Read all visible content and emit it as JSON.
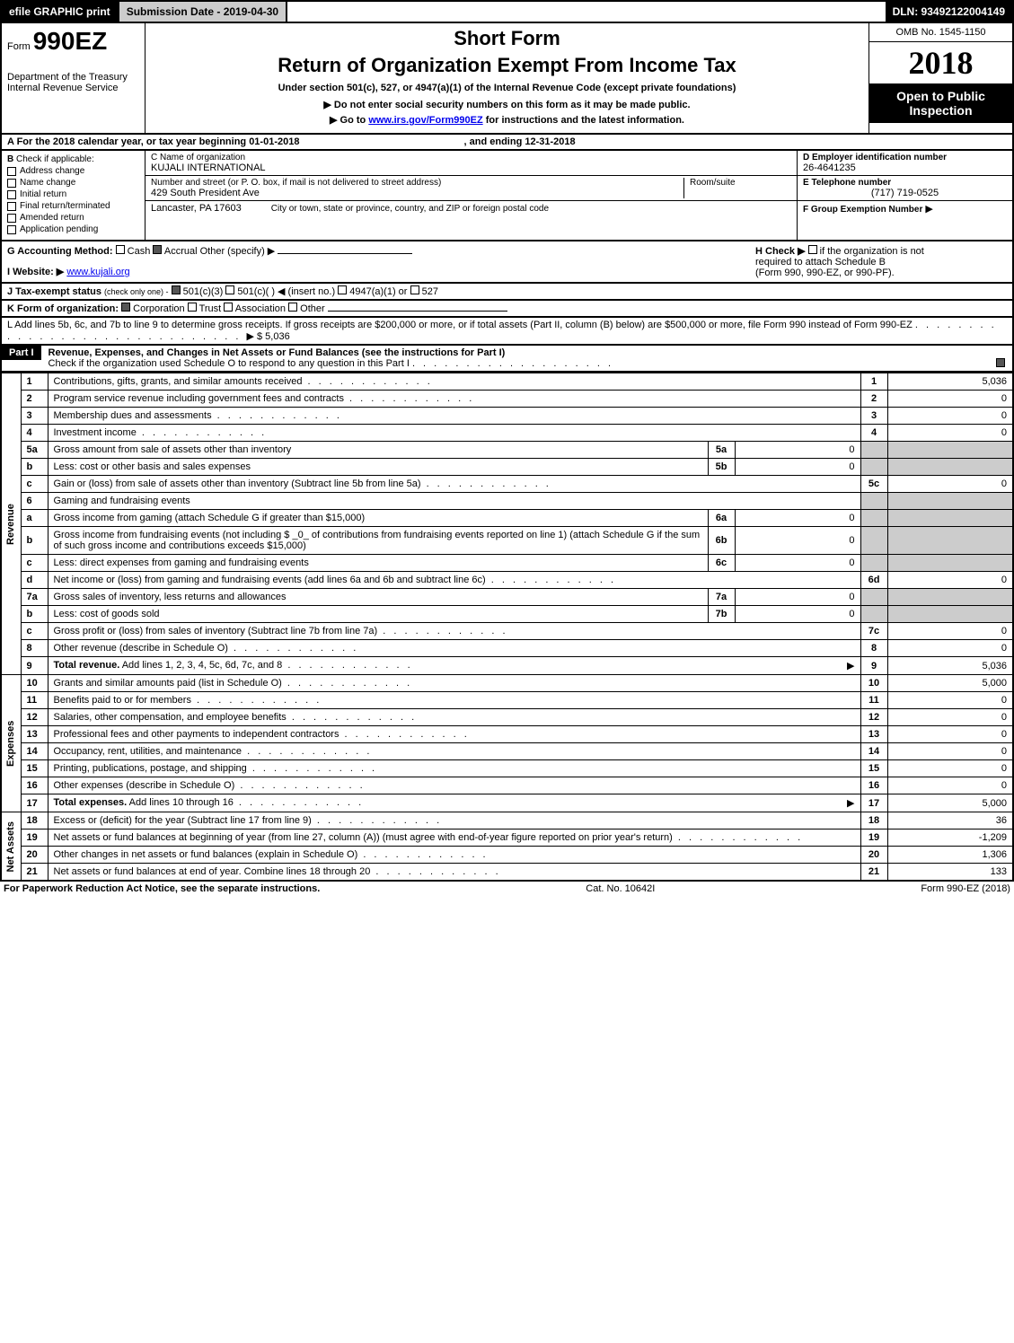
{
  "top": {
    "efile": "efile GRAPHIC print",
    "submission": "Submission Date - 2019-04-30",
    "dln": "DLN: 93492122004149"
  },
  "header": {
    "form_prefix": "Form",
    "form_number": "990EZ",
    "dept1": "Department of the Treasury",
    "dept2": "Internal Revenue Service",
    "short_form": "Short Form",
    "return_title": "Return of Organization Exempt From Income Tax",
    "subtitle": "Under section 501(c), 527, or 4947(a)(1) of the Internal Revenue Code (except private foundations)",
    "inst1_prefix": "▶ Do not enter social security numbers on this form as it may be made public.",
    "inst2_prefix": "▶ Go to ",
    "inst2_link": "www.irs.gov/Form990EZ",
    "inst2_suffix": " for instructions and the latest information.",
    "omb": "OMB No. 1545-1150",
    "year": "2018",
    "open_public1": "Open to Public",
    "open_public2": "Inspection"
  },
  "sectionA": {
    "label": "A For the 2018 calendar year, or tax year beginning 01-01-2018",
    "ending": ", and ending 12-31-2018"
  },
  "sectionB": {
    "label": "B",
    "check_if": "Check if applicable:",
    "addr_change": "Address change",
    "name_change": "Name change",
    "initial_return": "Initial return",
    "final_return": "Final return/terminated",
    "amended": "Amended return",
    "app_pending": "Application pending"
  },
  "sectionC": {
    "label": "C Name of organization",
    "org_name": "KUJALI INTERNATIONAL",
    "addr_label": "Number and street (or P. O. box, if mail is not delivered to street address)",
    "address": "429 South President Ave",
    "room_label": "Room/suite",
    "city_label": "City or town, state or province, country, and ZIP or foreign postal code",
    "city": "Lancaster, PA  17603"
  },
  "sectionD": {
    "label": "D Employer identification number",
    "ein": "26-4641235"
  },
  "sectionE": {
    "label": "E Telephone number",
    "phone": "(717) 719-0525"
  },
  "sectionF": {
    "label": "F Group Exemption Number",
    "arrow": "▶"
  },
  "sectionG": {
    "label": "G Accounting Method:",
    "cash": "Cash",
    "accrual": "Accrual",
    "other": "Other (specify) ▶"
  },
  "sectionH": {
    "label": "H   Check ▶",
    "text1": "if the organization is not",
    "text2": "required to attach Schedule B",
    "text3": "(Form 990, 990-EZ, or 990-PF)."
  },
  "sectionI": {
    "label": "I Website: ▶",
    "url": "www.kujali.org"
  },
  "sectionJ": {
    "label": "J Tax-exempt status",
    "note": "(check only one) -",
    "opt1": "501(c)(3)",
    "opt2": "501(c)(  ) ◀ (insert no.)",
    "opt3": "4947(a)(1) or",
    "opt4": "527"
  },
  "sectionK": {
    "label": "K Form of organization:",
    "corp": "Corporation",
    "trust": "Trust",
    "assoc": "Association",
    "other": "Other"
  },
  "sectionL": {
    "text": "L Add lines 5b, 6c, and 7b to line 9 to determine gross receipts. If gross receipts are $200,000 or more, or if total assets (Part II, column (B) below) are $500,000 or more, file Form 990 instead of Form 990-EZ",
    "amount": "▶ $ 5,036"
  },
  "part1": {
    "header": "Part I",
    "title": "Revenue, Expenses, and Changes in Net Assets or Fund Balances (see the instructions for Part I)",
    "check_text": "Check if the organization used Schedule O to respond to any question in this Part I"
  },
  "rows": [
    {
      "no": "1",
      "desc": "Contributions, gifts, grants, and similar amounts received",
      "rno": "1",
      "rval": "5,036"
    },
    {
      "no": "2",
      "desc": "Program service revenue including government fees and contracts",
      "rno": "2",
      "rval": "0"
    },
    {
      "no": "3",
      "desc": "Membership dues and assessments",
      "rno": "3",
      "rval": "0"
    },
    {
      "no": "4",
      "desc": "Investment income",
      "rno": "4",
      "rval": "0"
    },
    {
      "no": "5a",
      "desc": "Gross amount from sale of assets other than inventory",
      "mno": "5a",
      "mval": "0",
      "shaded": true
    },
    {
      "no": "b",
      "desc": "Less: cost or other basis and sales expenses",
      "mno": "5b",
      "mval": "0",
      "shaded": true
    },
    {
      "no": "c",
      "desc": "Gain or (loss) from sale of assets other than inventory (Subtract line 5b from line 5a)",
      "rno": "5c",
      "rval": "0"
    },
    {
      "no": "6",
      "desc": "Gaming and fundraising events",
      "shaded": true,
      "noborder": true
    },
    {
      "no": "a",
      "desc": "Gross income from gaming (attach Schedule G if greater than $15,000)",
      "mno": "6a",
      "mval": "0",
      "shaded": true
    },
    {
      "no": "b",
      "desc": "Gross income from fundraising events (not including $ _0_ of contributions from fundraising events reported on line 1) (attach Schedule G if the sum of such gross income and contributions exceeds $15,000)",
      "mno": "6b",
      "mval": "0",
      "shaded": true
    },
    {
      "no": "c",
      "desc": "Less: direct expenses from gaming and fundraising events",
      "mno": "6c",
      "mval": "0",
      "shaded": true
    },
    {
      "no": "d",
      "desc": "Net income or (loss) from gaming and fundraising events (add lines 6a and 6b and subtract line 6c)",
      "rno": "6d",
      "rval": "0"
    },
    {
      "no": "7a",
      "desc": "Gross sales of inventory, less returns and allowances",
      "mno": "7a",
      "mval": "0",
      "shaded": true
    },
    {
      "no": "b",
      "desc": "Less: cost of goods sold",
      "mno": "7b",
      "mval": "0",
      "shaded": true
    },
    {
      "no": "c",
      "desc": "Gross profit or (loss) from sales of inventory (Subtract line 7b from line 7a)",
      "rno": "7c",
      "rval": "0"
    },
    {
      "no": "8",
      "desc": "Other revenue (describe in Schedule O)",
      "rno": "8",
      "rval": "0"
    },
    {
      "no": "9",
      "desc": "Total revenue. Add lines 1, 2, 3, 4, 5c, 6d, 7c, and 8",
      "rno": "9",
      "rval": "5,036",
      "bold": true,
      "arrow": true
    }
  ],
  "expense_rows": [
    {
      "no": "10",
      "desc": "Grants and similar amounts paid (list in Schedule O)",
      "rno": "10",
      "rval": "5,000"
    },
    {
      "no": "11",
      "desc": "Benefits paid to or for members",
      "rno": "11",
      "rval": "0"
    },
    {
      "no": "12",
      "desc": "Salaries, other compensation, and employee benefits",
      "rno": "12",
      "rval": "0"
    },
    {
      "no": "13",
      "desc": "Professional fees and other payments to independent contractors",
      "rno": "13",
      "rval": "0"
    },
    {
      "no": "14",
      "desc": "Occupancy, rent, utilities, and maintenance",
      "rno": "14",
      "rval": "0"
    },
    {
      "no": "15",
      "desc": "Printing, publications, postage, and shipping",
      "rno": "15",
      "rval": "0"
    },
    {
      "no": "16",
      "desc": "Other expenses (describe in Schedule O)",
      "rno": "16",
      "rval": "0"
    },
    {
      "no": "17",
      "desc": "Total expenses. Add lines 10 through 16",
      "rno": "17",
      "rval": "5,000",
      "bold": true,
      "arrow": true
    }
  ],
  "asset_rows": [
    {
      "no": "18",
      "desc": "Excess or (deficit) for the year (Subtract line 17 from line 9)",
      "rno": "18",
      "rval": "36"
    },
    {
      "no": "19",
      "desc": "Net assets or fund balances at beginning of year (from line 27, column (A)) (must agree with end-of-year figure reported on prior year's return)",
      "rno": "19",
      "rval": "-1,209"
    },
    {
      "no": "20",
      "desc": "Other changes in net assets or fund balances (explain in Schedule O)",
      "rno": "20",
      "rval": "1,306"
    },
    {
      "no": "21",
      "desc": "Net assets or fund balances at end of year. Combine lines 18 through 20",
      "rno": "21",
      "rval": "133"
    }
  ],
  "section_labels": {
    "revenue": "Revenue",
    "expenses": "Expenses",
    "net_assets": "Net Assets"
  },
  "footer": {
    "left": "For Paperwork Reduction Act Notice, see the separate instructions.",
    "center": "Cat. No. 10642I",
    "right": "Form 990-EZ (2018)"
  }
}
